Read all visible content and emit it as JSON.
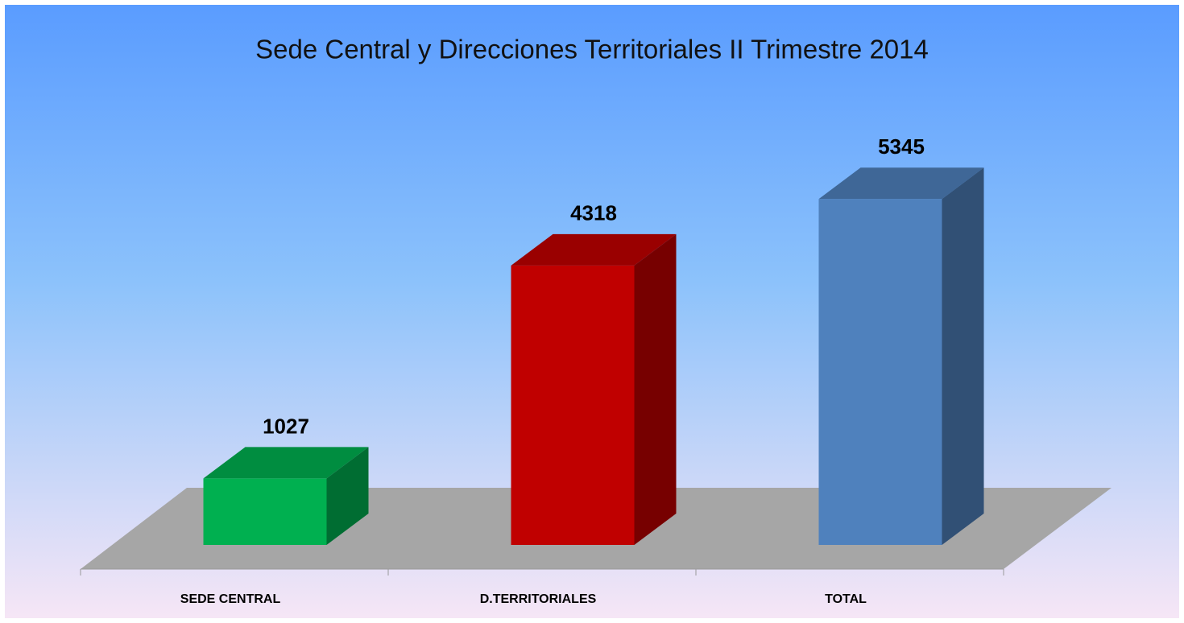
{
  "chart_data": {
    "type": "bar3d",
    "title": "Sede Central y Direcciones Territoriales II Trimestre 2014",
    "categories": [
      "SEDE CENTRAL",
      "D.TERRITORIALES",
      "TOTAL"
    ],
    "values": [
      1027,
      4318,
      5345
    ],
    "colors": [
      "#00b050",
      "#c00000",
      "#4f81bd"
    ]
  }
}
